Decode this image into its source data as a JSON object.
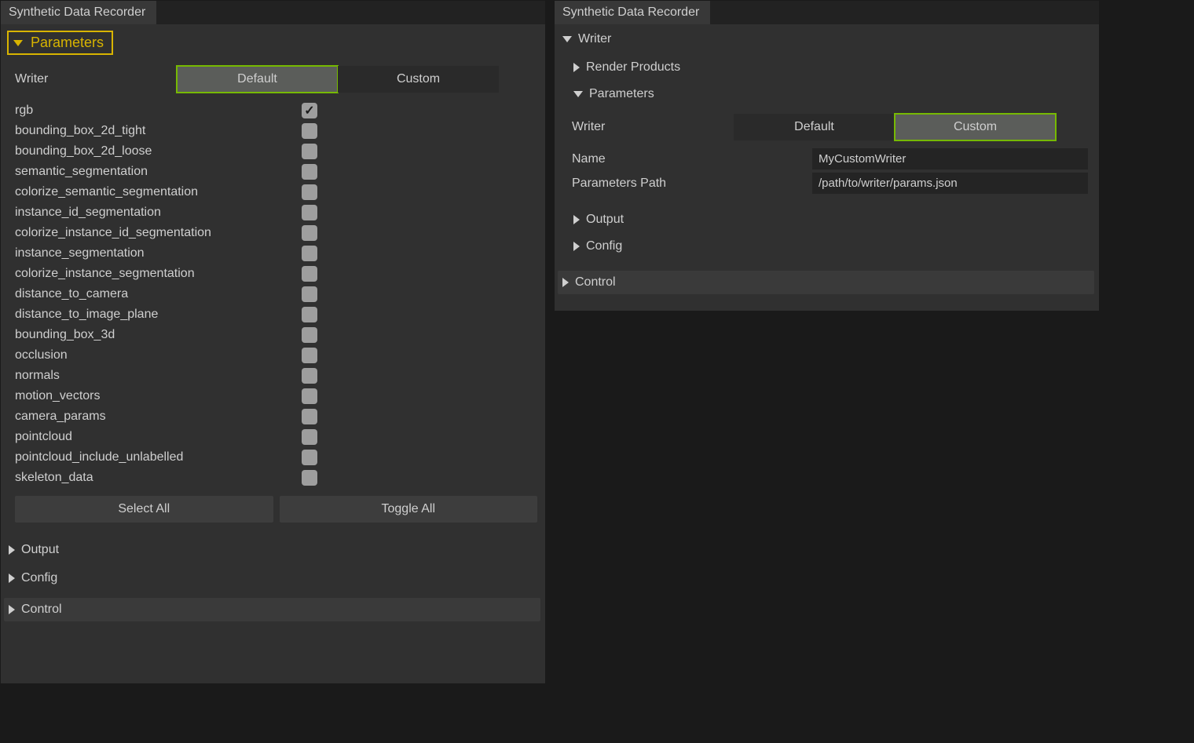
{
  "leftPanel": {
    "tabTitle": "Synthetic Data Recorder",
    "parametersHeader": "Parameters",
    "writerLabel": "Writer",
    "writerOptions": {
      "default": "Default",
      "custom": "Custom"
    },
    "checkboxes": [
      {
        "label": "rgb",
        "checked": true
      },
      {
        "label": "bounding_box_2d_tight",
        "checked": false
      },
      {
        "label": "bounding_box_2d_loose",
        "checked": false
      },
      {
        "label": "semantic_segmentation",
        "checked": false
      },
      {
        "label": "colorize_semantic_segmentation",
        "checked": false
      },
      {
        "label": "instance_id_segmentation",
        "checked": false
      },
      {
        "label": "colorize_instance_id_segmentation",
        "checked": false
      },
      {
        "label": "instance_segmentation",
        "checked": false
      },
      {
        "label": "colorize_instance_segmentation",
        "checked": false
      },
      {
        "label": "distance_to_camera",
        "checked": false
      },
      {
        "label": "distance_to_image_plane",
        "checked": false
      },
      {
        "label": "bounding_box_3d",
        "checked": false
      },
      {
        "label": "occlusion",
        "checked": false
      },
      {
        "label": "normals",
        "checked": false
      },
      {
        "label": "motion_vectors",
        "checked": false
      },
      {
        "label": "camera_params",
        "checked": false
      },
      {
        "label": "pointcloud",
        "checked": false
      },
      {
        "label": "pointcloud_include_unlabelled",
        "checked": false
      },
      {
        "label": "skeleton_data",
        "checked": false
      }
    ],
    "selectAllLabel": "Select All",
    "toggleAllLabel": "Toggle All",
    "outputHeader": "Output",
    "configHeader": "Config",
    "controlHeader": "Control"
  },
  "rightPanel": {
    "tabTitle": "Synthetic Data Recorder",
    "writerHeader": "Writer",
    "renderProductsHeader": "Render Products",
    "parametersHeader": "Parameters",
    "writerLabel": "Writer",
    "writerOptions": {
      "default": "Default",
      "custom": "Custom"
    },
    "nameLabel": "Name",
    "nameValue": "MyCustomWriter",
    "paramsPathLabel": "Parameters Path",
    "paramsPathValue": "/path/to/writer/params.json",
    "outputHeader": "Output",
    "configHeader": "Config",
    "controlHeader": "Control"
  },
  "colors": {
    "background": "#1a1a1a",
    "panel": "#303030",
    "section": "#3a3a3a",
    "highlight_green": "#76b900",
    "highlight_yellow": "#d8b400",
    "active_btn": "#5b5d5a",
    "text": "#cfcfcf",
    "input_bg": "#242424",
    "checkbox_bg": "#9e9e9e"
  }
}
